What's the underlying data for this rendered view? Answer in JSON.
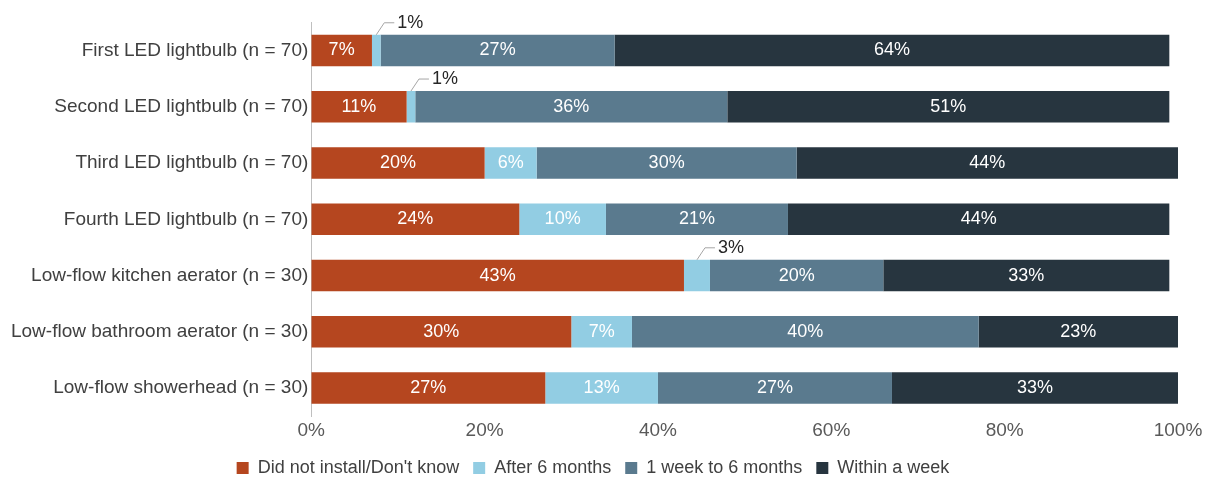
{
  "chart_data": {
    "type": "bar",
    "orientation": "horizontal",
    "stacked": true,
    "categories": [
      "First LED lightbulb (n = 70)",
      "Second LED lightbulb (n = 70)",
      "Third LED lightbulb (n = 70)",
      "Fourth LED lightbulb (n = 70)",
      "Low-flow kitchen aerator (n = 30)",
      "Low-flow bathroom aerator (n = 30)",
      "Low-flow showerhead (n = 30)"
    ],
    "series": [
      {
        "name": "Did not install/Don't know",
        "color": "#b5461f",
        "values": [
          7,
          11,
          20,
          24,
          43,
          30,
          27
        ],
        "value_labels": [
          "7%",
          "11%",
          "20%",
          "24%",
          "43%",
          "30%",
          "27%"
        ]
      },
      {
        "name": "After 6 months",
        "color": "#92cde3",
        "values": [
          1,
          1,
          6,
          10,
          3,
          7,
          13
        ],
        "value_labels": [
          "1%",
          "1%",
          "6%",
          "10%",
          "3%",
          "7%",
          "13%"
        ]
      },
      {
        "name": "1 week to 6 months",
        "color": "#5a7a8e",
        "values": [
          27,
          36,
          30,
          21,
          20,
          40,
          27
        ],
        "value_labels": [
          "27%",
          "36%",
          "30%",
          "21%",
          "20%",
          "40%",
          "27%"
        ]
      },
      {
        "name": "Within a week",
        "color": "#27353f",
        "values": [
          64,
          51,
          44,
          44,
          33,
          23,
          33
        ],
        "value_labels": [
          "64%",
          "51%",
          "44%",
          "44%",
          "33%",
          "23%",
          "33%"
        ]
      }
    ],
    "xlim": [
      0,
      100
    ],
    "xticks": [
      {
        "value": 0,
        "label": "0%"
      },
      {
        "value": 20,
        "label": "20%"
      },
      {
        "value": 40,
        "label": "40%"
      },
      {
        "value": 60,
        "label": "60%"
      },
      {
        "value": 80,
        "label": "80%"
      },
      {
        "value": 100,
        "label": "100%"
      }
    ],
    "grid": false,
    "legend": "bottom"
  }
}
